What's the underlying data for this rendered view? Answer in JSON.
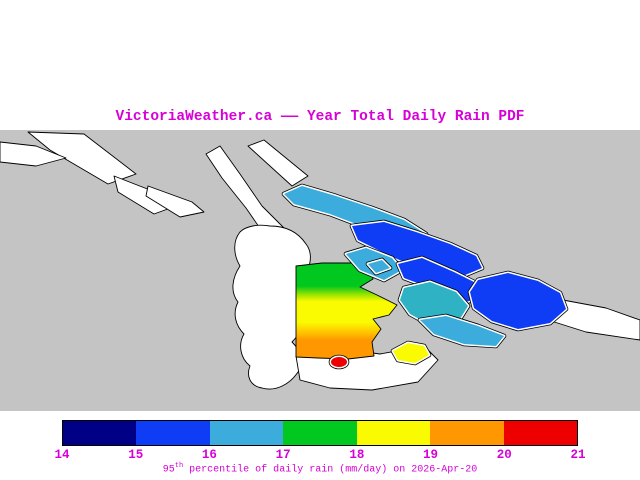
{
  "title": "VictoriaWeather.ca —— Year Total Daily Rain PDF",
  "caption": {
    "value": "95",
    "superscript": "th",
    "rest": " percentile of daily rain (mm/day) on 2026-Apr-20"
  },
  "colorbar": {
    "ticks": [
      "14",
      "15",
      "16",
      "17",
      "18",
      "19",
      "20",
      "21"
    ],
    "units": "mm/day",
    "segments": [
      {
        "range": "14-15",
        "color": "#000086"
      },
      {
        "range": "15-16",
        "color": "#0f3cf5"
      },
      {
        "range": "16-17",
        "color": "#3cacdc"
      },
      {
        "range": "17-18",
        "color": "#00c81e"
      },
      {
        "range": "18-19",
        "color": "#fafa00"
      },
      {
        "range": "19-20",
        "color": "#ff9800"
      },
      {
        "range": "20-21",
        "color": "#ee0000"
      }
    ]
  },
  "colors": {
    "magenta": "#d800d8",
    "mapbg": "#c4c4c4",
    "land": "#ffffff",
    "outline": "#000000",
    "navy": "#000086",
    "blue": "#0f3cf5",
    "cyan": "#3cacdc",
    "teal": "#2fb2c4",
    "green": "#00c81e",
    "yellow": "#fafa00",
    "orange": "#ff9800",
    "red": "#ee0000"
  },
  "chart_data": {
    "type": "heatmap",
    "title": "VictoriaWeather.ca —— Year Total Daily Rain PDF",
    "colorbar_label": "95th percentile of daily rain (mm/day) on 2026-Apr-20",
    "scale_ticks": [
      14,
      15,
      16,
      17,
      18,
      19,
      20,
      21
    ],
    "scale_range": [
      14,
      21
    ],
    "units": "mm/day",
    "legend_position": "bottom",
    "regions": [
      {
        "name": "northern-island-strip",
        "value_range_mm_day": "16-17"
      },
      {
        "name": "northern-island-main",
        "value_range_mm_day": "15-16"
      },
      {
        "name": "mid-channel-small-island",
        "value_range_mm_day": "16-17"
      },
      {
        "name": "mid-island-strip",
        "value_range_mm_day": "15-16"
      },
      {
        "name": "central-east-island",
        "value_range_mm_day": "16-17"
      },
      {
        "name": "eastern-large-island",
        "value_range_mm_day": "15-16"
      },
      {
        "name": "south-central-island-strip",
        "value_range_mm_day": "16-17"
      },
      {
        "name": "victoria-core-gradient-patch",
        "value_range_mm_day": "17-20 (green north, yellow center, orange south)"
      },
      {
        "name": "south-hotspot",
        "value_range_mm_day": "20-21"
      },
      {
        "name": "small-southeast-island",
        "value_range_mm_day": "18-19"
      }
    ]
  }
}
